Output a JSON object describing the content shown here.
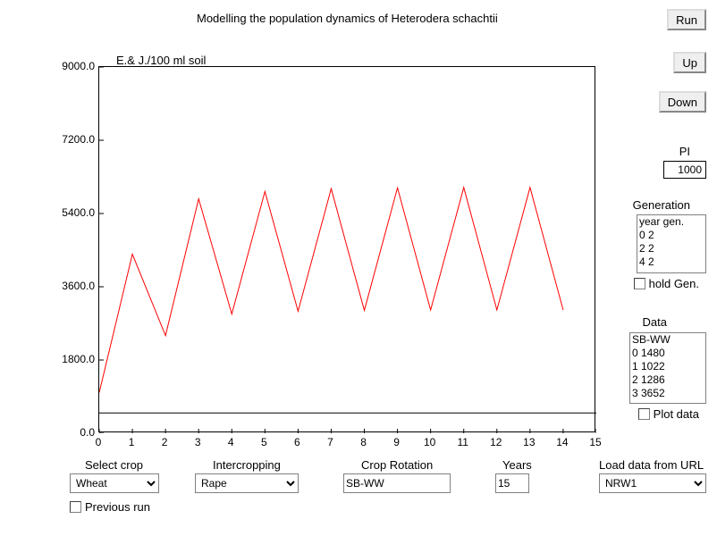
{
  "title": "Modelling the population dynamics of Heterodera schachtii",
  "chart": {
    "type": "line",
    "axis_title": "E.& J./100 ml soil",
    "xlim": [
      0,
      15
    ],
    "ylim": [
      0,
      9000
    ],
    "xticks": [
      0,
      1,
      2,
      3,
      4,
      5,
      6,
      7,
      8,
      9,
      10,
      11,
      12,
      13,
      14,
      15
    ],
    "yticks": [
      0,
      1800,
      3600,
      5400,
      7200,
      9000
    ],
    "ytick_labels": [
      "0.0",
      "1800.0",
      "3600.0",
      "5400.0",
      "7200.0",
      "9000.0"
    ],
    "line_color": "#ff0000",
    "line_width": 1,
    "background_color": "#ffffff",
    "border_color": "#000000",
    "hline_y": 500,
    "hline_color": "#000000",
    "series": [
      {
        "x": 0,
        "y": 1000
      },
      {
        "x": 1,
        "y": 4400
      },
      {
        "x": 2,
        "y": 2400
      },
      {
        "x": 3,
        "y": 5760
      },
      {
        "x": 4,
        "y": 2930
      },
      {
        "x": 5,
        "y": 5940
      },
      {
        "x": 6,
        "y": 3000
      },
      {
        "x": 7,
        "y": 6010
      },
      {
        "x": 8,
        "y": 3020
      },
      {
        "x": 9,
        "y": 6030
      },
      {
        "x": 10,
        "y": 3030
      },
      {
        "x": 11,
        "y": 6040
      },
      {
        "x": 12,
        "y": 3030
      },
      {
        "x": 13,
        "y": 6040
      },
      {
        "x": 14,
        "y": 3030
      }
    ]
  },
  "buttons": {
    "run": "Run",
    "up": "Up",
    "down": "Down"
  },
  "pi": {
    "label": "PI",
    "value": "1000"
  },
  "generation": {
    "label": "Generation",
    "header": "year gen.",
    "rows": [
      "0   2",
      "2   2",
      "4   2"
    ],
    "hold_label": "hold Gen."
  },
  "data": {
    "label": "Data",
    "header": "SB-WW",
    "rows": [
      "0   1480",
      "1   1022",
      "2   1286",
      "3   3652"
    ],
    "plot_label": "Plot data"
  },
  "bottom": {
    "select_crop": {
      "label": "Select crop",
      "value": "Wheat"
    },
    "intercropping": {
      "label": "Intercropping",
      "value": "Rape"
    },
    "crop_rotation": {
      "label": "Crop Rotation",
      "value": "SB-WW"
    },
    "years": {
      "label": "Years",
      "value": "15"
    },
    "load_data": {
      "label": "Load data from URL",
      "value": "NRW1"
    },
    "previous_run": "Previous run"
  }
}
